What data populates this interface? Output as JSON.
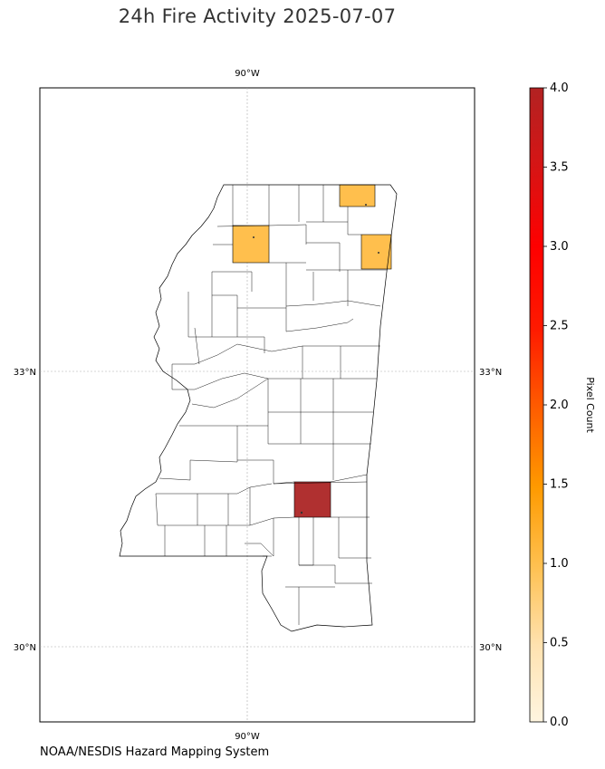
{
  "title": "24h Fire Activity 2025-07-07",
  "footer_credit": "NOAA/NESDIS Hazard Mapping System",
  "map": {
    "lon_labels": [
      "90°W",
      "90°W"
    ],
    "lat_labels": [
      "33°N",
      "33°N",
      "30°N",
      "30°N"
    ],
    "background": "#ffffff",
    "boundary_color": "#000000"
  },
  "colorbar": {
    "label": "Pixel Count",
    "ticks": [
      "0.0",
      "0.5",
      "1.0",
      "1.5",
      "2.0",
      "2.5",
      "3.0",
      "3.5",
      "4.0"
    ],
    "min": 0,
    "max": 4,
    "colors": [
      "#fff5e0",
      "#ffd27f",
      "#ffb347",
      "#ff8c00",
      "#ff4500",
      "#ff0000",
      "#d11212",
      "#b22222"
    ]
  },
  "fire_counties": [
    {
      "position": "north-east",
      "pixel_count": 1,
      "color": "#ffbf4d"
    },
    {
      "position": "north-west",
      "pixel_count": 1,
      "color": "#ffbf4d"
    },
    {
      "position": "east",
      "pixel_count": 1,
      "color": "#ffbf4d"
    },
    {
      "position": "south-central",
      "pixel_count": 4,
      "color": "#b03030"
    }
  ]
}
